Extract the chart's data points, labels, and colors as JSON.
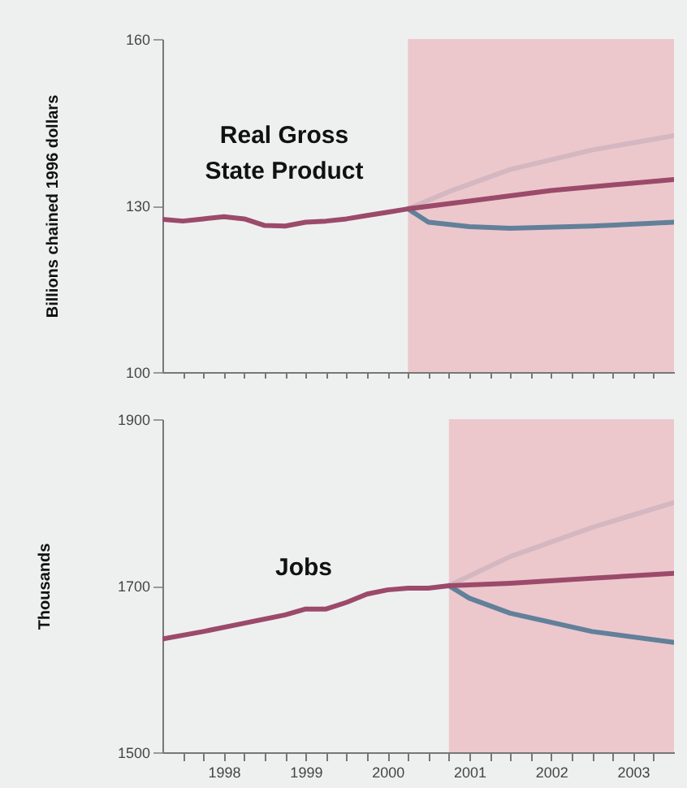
{
  "chart_data": [
    {
      "type": "line",
      "ylabel": "Billions chained 1996 dollars",
      "annotations": [
        "Real Gross State Product"
      ],
      "xlim": [
        1997.75,
        2004
      ],
      "ylim": [
        100,
        160
      ],
      "yticks": [
        100,
        130,
        160
      ],
      "xticks": [
        {
          "value": 1998,
          "label": null
        },
        {
          "value": 1998.25,
          "label": null
        },
        {
          "value": 1998.5,
          "label": null
        },
        {
          "value": 1998.75,
          "label": null
        },
        {
          "value": 1999,
          "label": null
        },
        {
          "value": 1999.25,
          "label": null
        },
        {
          "value": 1999.5,
          "label": null
        },
        {
          "value": 1999.75,
          "label": null
        },
        {
          "value": 2000,
          "label": null
        },
        {
          "value": 2000.25,
          "label": null
        },
        {
          "value": 2000.5,
          "label": null
        },
        {
          "value": 2000.75,
          "label": null
        },
        {
          "value": 2001,
          "label": null
        },
        {
          "value": 2001.25,
          "label": null
        },
        {
          "value": 2001.5,
          "label": null
        },
        {
          "value": 2001.75,
          "label": null
        },
        {
          "value": 2002,
          "label": null
        },
        {
          "value": 2002.25,
          "label": null
        },
        {
          "value": 2002.5,
          "label": null
        },
        {
          "value": 2002.75,
          "label": null
        },
        {
          "value": 2003,
          "label": null
        },
        {
          "value": 2003.25,
          "label": null
        },
        {
          "value": 2003.5,
          "label": null
        },
        {
          "value": 2003.75,
          "label": null
        }
      ],
      "tick_labels": "y",
      "grid": false,
      "bands": [
        {
          "axis": "x",
          "from": 2000.75,
          "to": 2004,
          "color": "#ecc8cd"
        }
      ],
      "series": [
        {
          "color": "#d4b7c0",
          "x": [
            2000.75,
            2001.25,
            2002,
            2003,
            2004
          ],
          "values": [
            129.4,
            132.5,
            136.5,
            140,
            142.6
          ]
        },
        {
          "color": "#62809a",
          "x": [
            2000.75,
            2001,
            2001.5,
            2002,
            2003,
            2004
          ],
          "values": [
            129.4,
            127,
            126.2,
            125.9,
            126.3,
            127
          ]
        },
        {
          "color": "#9c4a6a",
          "x": [
            1997.75,
            1998,
            1998.25,
            1998.5,
            1998.75,
            1999,
            1999.25,
            1999.5,
            1999.75,
            2000,
            2000.25,
            2000.5,
            2000.75,
            2001.5,
            2002.5,
            2004
          ],
          "values": [
            127.5,
            127.2,
            127.6,
            128,
            127.6,
            126.4,
            126.3,
            127,
            127.2,
            127.6,
            128.2,
            128.8,
            129.4,
            130.8,
            132.7,
            134.7
          ]
        }
      ]
    },
    {
      "type": "line",
      "ylabel": "Thousands",
      "annotations": [
        "Jobs"
      ],
      "xlim": [
        1997.75,
        2004
      ],
      "ylim": [
        1500,
        1900
      ],
      "yticks": [
        1500,
        1700,
        1900
      ],
      "xticks": [
        {
          "value": 1998,
          "label": null
        },
        {
          "value": 1998.25,
          "label": null
        },
        {
          "value": 1998.5,
          "label": "1998"
        },
        {
          "value": 1998.75,
          "label": null
        },
        {
          "value": 1999,
          "label": null
        },
        {
          "value": 1999.25,
          "label": null
        },
        {
          "value": 1999.5,
          "label": "1999"
        },
        {
          "value": 1999.75,
          "label": null
        },
        {
          "value": 2000,
          "label": null
        },
        {
          "value": 2000.25,
          "label": null
        },
        {
          "value": 2000.5,
          "label": "2000"
        },
        {
          "value": 2000.75,
          "label": null
        },
        {
          "value": 2001,
          "label": null
        },
        {
          "value": 2001.25,
          "label": null
        },
        {
          "value": 2001.5,
          "label": "2001"
        },
        {
          "value": 2001.75,
          "label": null
        },
        {
          "value": 2002,
          "label": null
        },
        {
          "value": 2002.25,
          "label": null
        },
        {
          "value": 2002.5,
          "label": "2002"
        },
        {
          "value": 2002.75,
          "label": null
        },
        {
          "value": 2003,
          "label": null
        },
        {
          "value": 2003.25,
          "label": null
        },
        {
          "value": 2003.5,
          "label": "2003"
        },
        {
          "value": 2003.75,
          "label": null
        }
      ],
      "grid": false,
      "bands": [
        {
          "axis": "x",
          "from": 2001.25,
          "to": 2004,
          "color": "#ecc8cd"
        }
      ],
      "series": [
        {
          "color": "#d4b7c0",
          "x": [
            2001.25,
            2002,
            2003,
            2004
          ],
          "values": [
            1700,
            1735,
            1770,
            1800
          ]
        },
        {
          "color": "#62809a",
          "x": [
            2001.25,
            2001.5,
            2002,
            2003,
            2004
          ],
          "values": [
            1700,
            1685,
            1667,
            1645,
            1632
          ]
        },
        {
          "color": "#9c4a6a",
          "x": [
            1997.75,
            1998.25,
            1998.75,
            1999.25,
            1999.5,
            1999.75,
            2000,
            2000.25,
            2000.5,
            2000.75,
            2001,
            2001.25,
            2002,
            2003,
            2004
          ],
          "values": [
            1636,
            1645,
            1655,
            1665,
            1672,
            1672,
            1680,
            1690,
            1695,
            1697,
            1697,
            1700,
            1703,
            1709,
            1715
          ]
        }
      ]
    }
  ]
}
